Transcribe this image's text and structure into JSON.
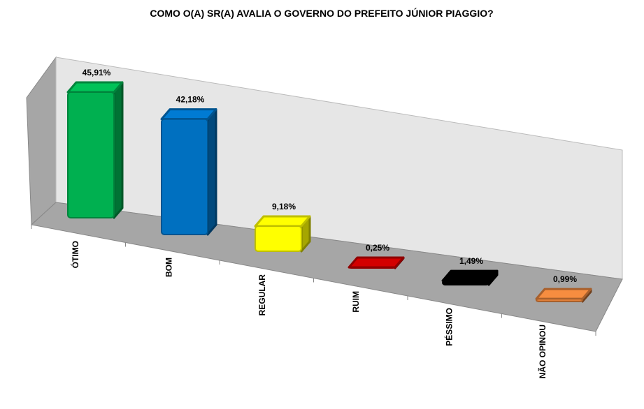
{
  "chart_data": {
    "type": "bar3d",
    "title": "COMO O(A) SR(A) AVALIA O GOVERNO DO PREFEITO JÚNIOR PIAGGIO?",
    "categories": [
      "ÓTIMO",
      "BOM",
      "REGULAR",
      "RUIM",
      "PÉSSIMO",
      "NÃO OPINOU"
    ],
    "values": [
      45.91,
      42.18,
      9.18,
      0.25,
      1.49,
      0.99
    ],
    "value_labels": [
      "45,91%",
      "42,18%",
      "9,18%",
      "0,25%",
      "1,49%",
      "0,99%"
    ],
    "colors": [
      "#00b050",
      "#0070c0",
      "#ffff00",
      "#c00000",
      "#000000",
      "#e0803a"
    ]
  }
}
